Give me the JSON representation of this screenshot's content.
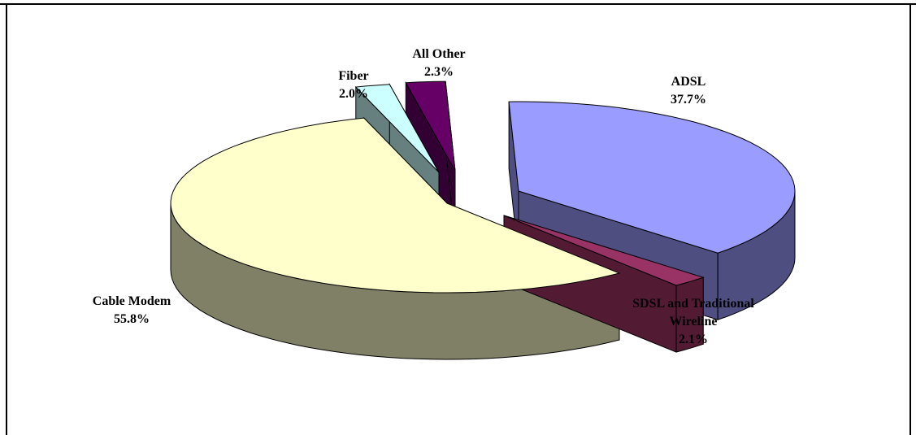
{
  "chart_data": {
    "type": "pie",
    "style": "3d-exploded",
    "slices": [
      {
        "label": "ADSL",
        "label_lines": [
          "ADSL"
        ],
        "value_text": "37.7%",
        "value": 37.7,
        "top_color": "#9a9cff",
        "side_color": "#4e4f80"
      },
      {
        "label": "SDSL and Traditional Wireline",
        "label_lines": [
          "SDSL and Traditional",
          "Wireline"
        ],
        "value_text": "2.1%",
        "value": 2.1,
        "top_color": "#993366",
        "side_color": "#531a34"
      },
      {
        "label": "Cable Modem",
        "label_lines": [
          "Cable Modem"
        ],
        "value_text": "55.8%",
        "value": 55.8,
        "top_color": "#ffffcc",
        "side_color": "#808066"
      },
      {
        "label": "Fiber",
        "label_lines": [
          "Fiber"
        ],
        "value_text": "2.0%",
        "value": 2.0,
        "top_color": "#ccffff",
        "side_color": "#668080"
      },
      {
        "label": "All Other",
        "label_lines": [
          "All Other"
        ],
        "value_text": "2.3%",
        "value": 2.3,
        "top_color": "#660066",
        "side_color": "#330033"
      }
    ]
  }
}
